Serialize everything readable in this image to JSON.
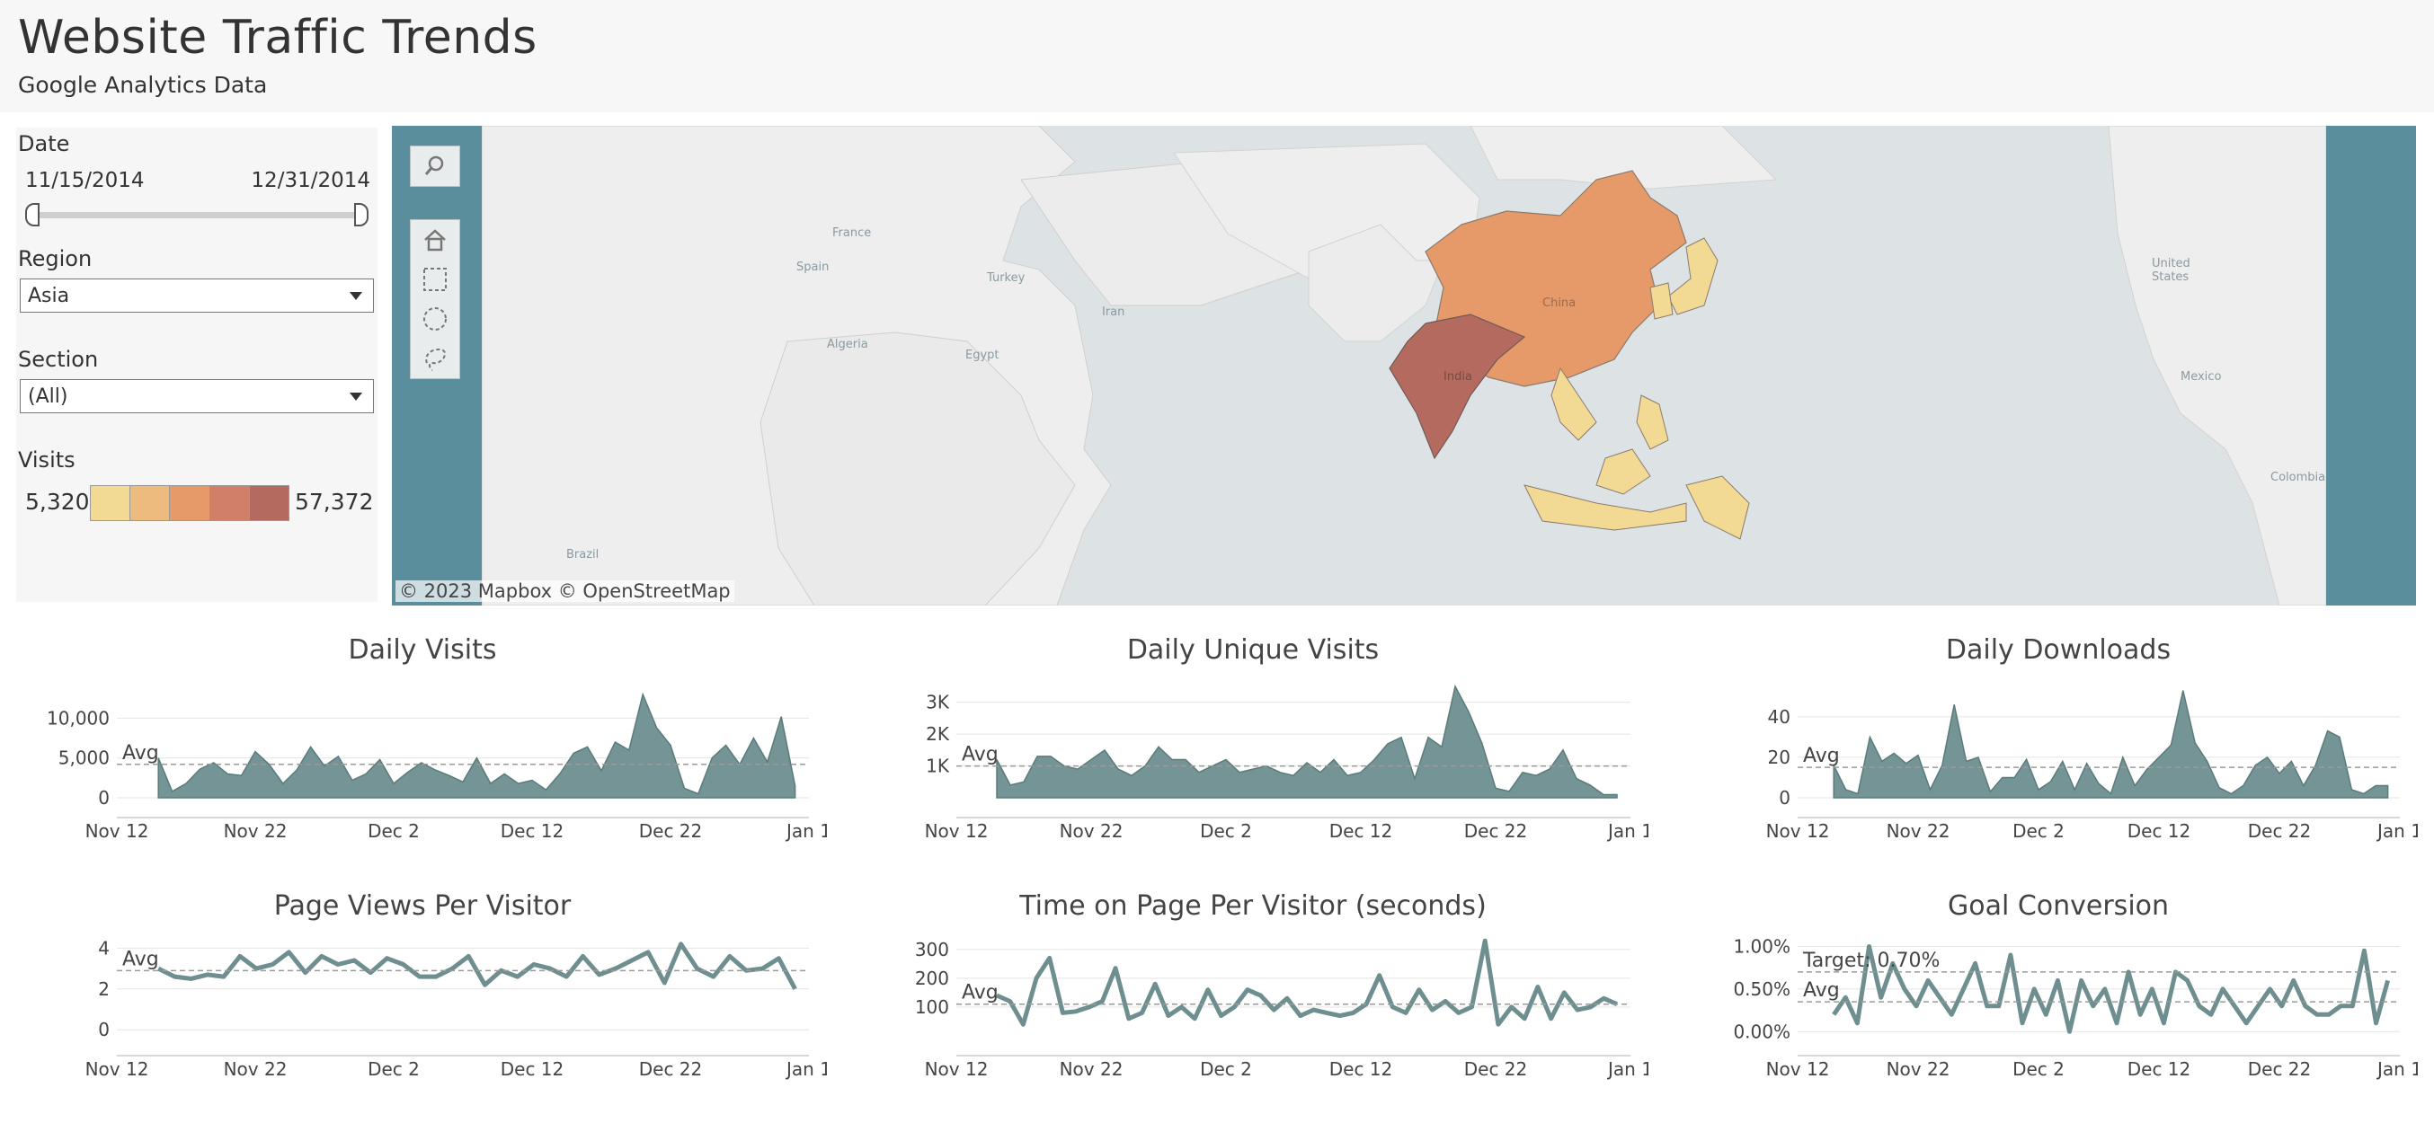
{
  "header": {
    "title": "Website Traffic Trends",
    "subtitle": "Google Analytics Data"
  },
  "filters": {
    "date": {
      "label": "Date",
      "start": "11/15/2014",
      "end": "12/31/2014"
    },
    "region": {
      "label": "Region",
      "value": "Asia"
    },
    "section": {
      "label": "Section",
      "value": "(All)"
    },
    "visits": {
      "label": "Visits",
      "min": "5,320",
      "max": "57,372",
      "colors": [
        "#f2da95",
        "#eebb7f",
        "#e69a69",
        "#d17f68",
        "#b56a60"
      ]
    }
  },
  "map": {
    "attribution": "© 2023 Mapbox  © OpenStreetMap",
    "place_labels": [
      "France",
      "Spain",
      "Turkey",
      "Iran",
      "Algeria",
      "Egypt",
      "Brazil",
      "China",
      "India",
      "United States",
      "Mexico",
      "Colombia"
    ],
    "tools": [
      "search-icon",
      "home-icon",
      "rect-select-icon",
      "radial-select-icon",
      "lasso-select-icon"
    ]
  },
  "chart_data": [
    {
      "type": "area",
      "title": "Daily Visits",
      "x_start": "2014-11-15",
      "x_end": "2014-12-31",
      "x_ticks": [
        "Nov 12",
        "Nov 22",
        "Dec 2",
        "Dec 12",
        "Dec 22",
        "Jan 1"
      ],
      "y_ticks": [
        "10,000",
        "5,000",
        "0"
      ],
      "y_tick_values": [
        10000,
        5000,
        0
      ],
      "ylim": [
        0,
        14000
      ],
      "avg": 4200,
      "avg_label": "Avg",
      "color": "#6e8e8f",
      "values": [
        5000,
        800,
        1800,
        3600,
        4400,
        3000,
        2800,
        5800,
        4200,
        1800,
        3500,
        6400,
        4000,
        5200,
        2200,
        3000,
        4800,
        1800,
        3200,
        4400,
        3500,
        2800,
        2000,
        5000,
        1800,
        3000,
        1800,
        2200,
        1000,
        3000,
        5600,
        6400,
        3400,
        7000,
        6000,
        13000,
        8800,
        6600,
        1200,
        500,
        5000,
        6600,
        4200,
        7500,
        4500,
        10200,
        1500
      ]
    },
    {
      "type": "area",
      "title": "Daily Unique Visits",
      "x_start": "2014-11-15",
      "x_end": "2014-12-31",
      "x_ticks": [
        "Nov 12",
        "Nov 22",
        "Dec 2",
        "Dec 12",
        "Dec 22",
        "Jan 1"
      ],
      "y_ticks": [
        "3K",
        "2K",
        "1K"
      ],
      "y_tick_values": [
        3000,
        2000,
        1000
      ],
      "ylim": [
        0,
        3500
      ],
      "avg": 1000,
      "avg_label": "Avg",
      "color": "#6e8e8f",
      "values": [
        1200,
        400,
        500,
        1300,
        1300,
        1000,
        900,
        1200,
        1500,
        900,
        700,
        1000,
        1600,
        1200,
        1200,
        800,
        1000,
        1200,
        800,
        900,
        1000,
        800,
        700,
        1100,
        800,
        1200,
        700,
        800,
        1200,
        1700,
        1900,
        600,
        1900,
        1600,
        3500,
        2700,
        1700,
        300,
        200,
        800,
        700,
        900,
        1500,
        600,
        400,
        100,
        100
      ]
    },
    {
      "type": "area",
      "title": "Daily Downloads",
      "x_start": "2014-11-15",
      "x_end": "2014-12-31",
      "x_ticks": [
        "Nov 12",
        "Nov 22",
        "Dec 2",
        "Dec 12",
        "Dec 22",
        "Jan 1"
      ],
      "y_ticks": [
        "40",
        "20",
        "0"
      ],
      "y_tick_values": [
        40,
        20,
        0
      ],
      "ylim": [
        0,
        55
      ],
      "avg": 15,
      "avg_label": "Avg",
      "color": "#6e8e8f",
      "values": [
        16,
        4,
        2,
        30,
        18,
        22,
        17,
        21,
        4,
        16,
        46,
        18,
        20,
        3,
        10,
        10,
        19,
        4,
        8,
        18,
        4,
        17,
        7,
        2,
        20,
        6,
        14,
        20,
        26,
        53,
        27,
        18,
        5,
        2,
        6,
        16,
        20,
        12,
        18,
        6,
        16,
        33,
        30,
        4,
        2,
        6,
        6
      ]
    },
    {
      "type": "line",
      "title": "Page Views Per Visitor",
      "x_start": "2014-11-15",
      "x_end": "2014-12-31",
      "x_ticks": [
        "Nov 12",
        "Nov 22",
        "Dec 2",
        "Dec 12",
        "Dec 22",
        "Jan 1"
      ],
      "y_ticks": [
        "4",
        "2",
        "0"
      ],
      "y_tick_values": [
        4,
        2,
        0
      ],
      "ylim": [
        -0.3,
        4.5
      ],
      "avg": 2.9,
      "avg_label": "Avg",
      "color": "#6e8e8f",
      "values": [
        3.0,
        2.6,
        2.5,
        2.7,
        2.6,
        3.6,
        3.0,
        3.2,
        3.8,
        2.8,
        3.6,
        3.2,
        3.4,
        2.8,
        3.5,
        3.2,
        2.6,
        2.6,
        3.0,
        3.6,
        2.2,
        2.9,
        2.6,
        3.2,
        3.0,
        2.6,
        3.6,
        2.7,
        3.0,
        3.4,
        3.8,
        2.3,
        4.2,
        3.0,
        2.6,
        3.6,
        2.9,
        3.0,
        3.5,
        2.0
      ]
    },
    {
      "type": "line",
      "title": "Time on Page Per Visitor (seconds)",
      "x_start": "2014-11-15",
      "x_end": "2014-12-31",
      "x_ticks": [
        "Nov 12",
        "Nov 22",
        "Dec 2",
        "Dec 12",
        "Dec 22",
        "Jan 1"
      ],
      "y_ticks": [
        "300",
        "200",
        "100"
      ],
      "y_tick_values": [
        300,
        200,
        100
      ],
      "ylim": [
        0,
        340
      ],
      "avg": 110,
      "avg_label": "Avg",
      "color": "#6e8e8f",
      "values": [
        140,
        120,
        40,
        200,
        270,
        80,
        85,
        100,
        120,
        235,
        60,
        80,
        180,
        70,
        100,
        60,
        160,
        70,
        100,
        160,
        140,
        90,
        130,
        70,
        90,
        80,
        70,
        80,
        110,
        210,
        100,
        80,
        160,
        90,
        120,
        80,
        100,
        330,
        40,
        100,
        60,
        170,
        60,
        150,
        90,
        100,
        130,
        110
      ]
    },
    {
      "type": "line",
      "title": "Goal Conversion",
      "x_start": "2014-11-15",
      "x_end": "2014-12-31",
      "x_ticks": [
        "Nov 12",
        "Nov 22",
        "Dec 2",
        "Dec 12",
        "Dec 22",
        "Jan 1"
      ],
      "y_ticks": [
        "1.00%",
        "0.50%",
        "0.00%"
      ],
      "y_tick_values": [
        1.0,
        0.5,
        0.0
      ],
      "ylim": [
        -0.05,
        1.1
      ],
      "avg": 0.35,
      "avg_label": "Avg",
      "target": 0.7,
      "target_label": "Target: 0.70%",
      "color": "#6e8e8f",
      "values": [
        0.2,
        0.4,
        0.1,
        1.0,
        0.4,
        0.8,
        0.5,
        0.3,
        0.6,
        0.4,
        0.2,
        0.5,
        0.8,
        0.3,
        0.3,
        0.9,
        0.1,
        0.5,
        0.2,
        0.6,
        0.0,
        0.6,
        0.3,
        0.5,
        0.1,
        0.7,
        0.2,
        0.5,
        0.1,
        0.7,
        0.6,
        0.3,
        0.2,
        0.5,
        0.3,
        0.1,
        0.3,
        0.5,
        0.3,
        0.6,
        0.3,
        0.2,
        0.2,
        0.3,
        0.3,
        0.95,
        0.1,
        0.6
      ]
    }
  ]
}
